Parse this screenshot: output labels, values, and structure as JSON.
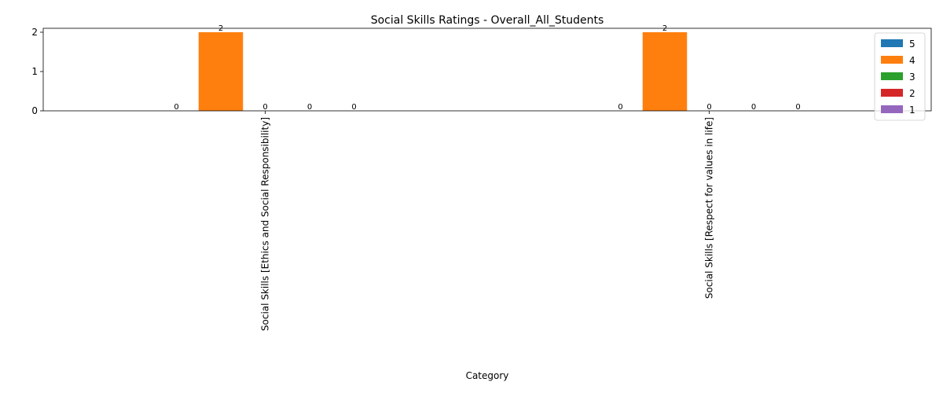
{
  "chart_data": {
    "type": "bar",
    "title": "Social Skills Ratings - Overall_All_Students",
    "xlabel": "Category",
    "ylabel": "",
    "categories": [
      "Social Skills [Ethics and Social Responsibility]",
      "Social Skills [Respect for values in life]"
    ],
    "series": [
      {
        "name": "5",
        "color": "#1f77b4",
        "values": [
          0,
          0
        ]
      },
      {
        "name": "4",
        "color": "#ff7f0e",
        "values": [
          2,
          2
        ]
      },
      {
        "name": "3",
        "color": "#2ca02c",
        "values": [
          0,
          0
        ]
      },
      {
        "name": "2",
        "color": "#d62728",
        "values": [
          0,
          0
        ]
      },
      {
        "name": "1",
        "color": "#9467bd",
        "values": [
          0,
          0
        ]
      }
    ],
    "ylim": [
      0,
      2.1
    ],
    "yticks": [
      0,
      1,
      2
    ],
    "grid": false,
    "legend_position": "top-right"
  }
}
